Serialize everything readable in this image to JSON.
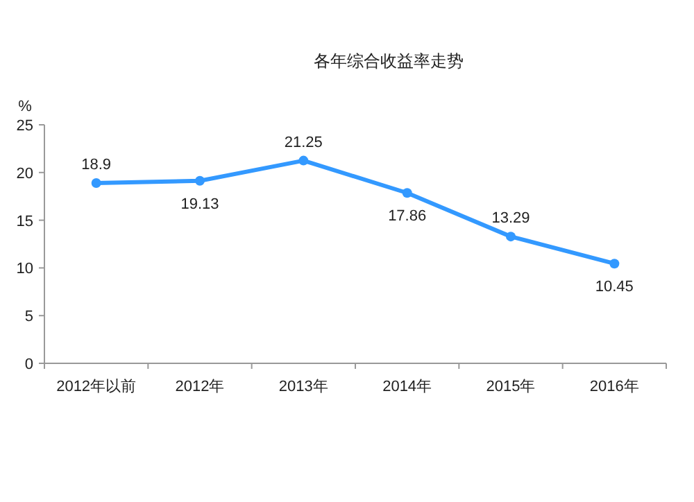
{
  "chart_data": {
    "type": "line",
    "title": "各年综合收益率走势",
    "ylabel": "%",
    "categories": [
      "2012年以前",
      "2012年",
      "2013年",
      "2014年",
      "2015年",
      "2016年"
    ],
    "series": [
      {
        "color": "#3399ff",
        "values": [
          18.9,
          19.13,
          21.25,
          17.86,
          13.29,
          10.45
        ]
      }
    ],
    "ylim": [
      0,
      25
    ],
    "yticks": [
      0,
      5,
      10,
      15,
      20,
      25
    ],
    "grid": false,
    "marker": "circle",
    "line_style": "solid",
    "data_labels": true
  }
}
